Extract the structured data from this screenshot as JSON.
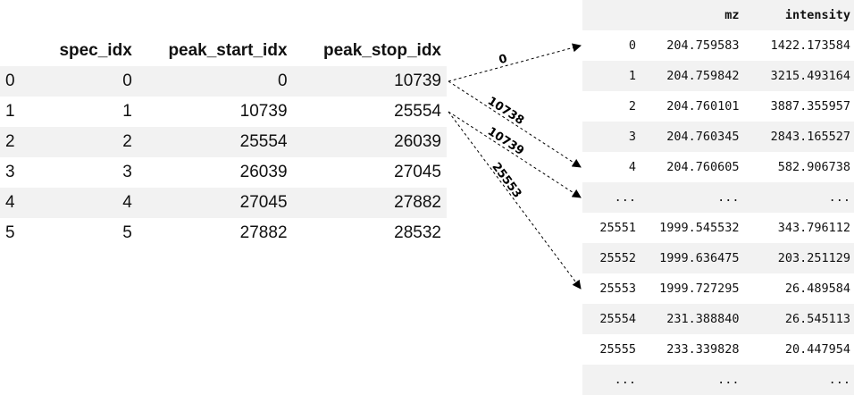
{
  "left_table": {
    "columns": [
      "",
      "spec_idx",
      "peak_start_idx",
      "peak_stop_idx"
    ],
    "rows": [
      [
        "0",
        "0",
        "0",
        "10739"
      ],
      [
        "1",
        "1",
        "10739",
        "25554"
      ],
      [
        "2",
        "2",
        "25554",
        "26039"
      ],
      [
        "3",
        "3",
        "26039",
        "27045"
      ],
      [
        "4",
        "4",
        "27045",
        "27882"
      ],
      [
        "5",
        "5",
        "27882",
        "28532"
      ]
    ]
  },
  "right_table": {
    "columns": [
      "",
      "mz",
      "intensity"
    ],
    "rows": [
      [
        "0",
        "204.759583",
        "1422.173584"
      ],
      [
        "1",
        "204.759842",
        "3215.493164"
      ],
      [
        "2",
        "204.760101",
        "3887.355957"
      ],
      [
        "3",
        "204.760345",
        "2843.165527"
      ],
      [
        "4",
        "204.760605",
        "582.906738"
      ],
      [
        "...",
        "...",
        "..."
      ],
      [
        "25551",
        "1999.545532",
        "343.796112"
      ],
      [
        "25552",
        "1999.636475",
        "203.251129"
      ],
      [
        "25553",
        "1999.727295",
        "26.489584"
      ],
      [
        "25554",
        "231.388840",
        "26.545113"
      ],
      [
        "25555",
        "233.339828",
        "20.447954"
      ],
      [
        "...",
        "...",
        "..."
      ]
    ]
  },
  "arrows": [
    {
      "label": "0",
      "from_row": 0,
      "to_row": 0
    },
    {
      "label": "10738",
      "from_row": 0,
      "to_row": 4
    },
    {
      "label": "10739",
      "from_row": 1,
      "to_row": 5
    },
    {
      "label": "25553",
      "from_row": 1,
      "to_row": 8
    }
  ]
}
